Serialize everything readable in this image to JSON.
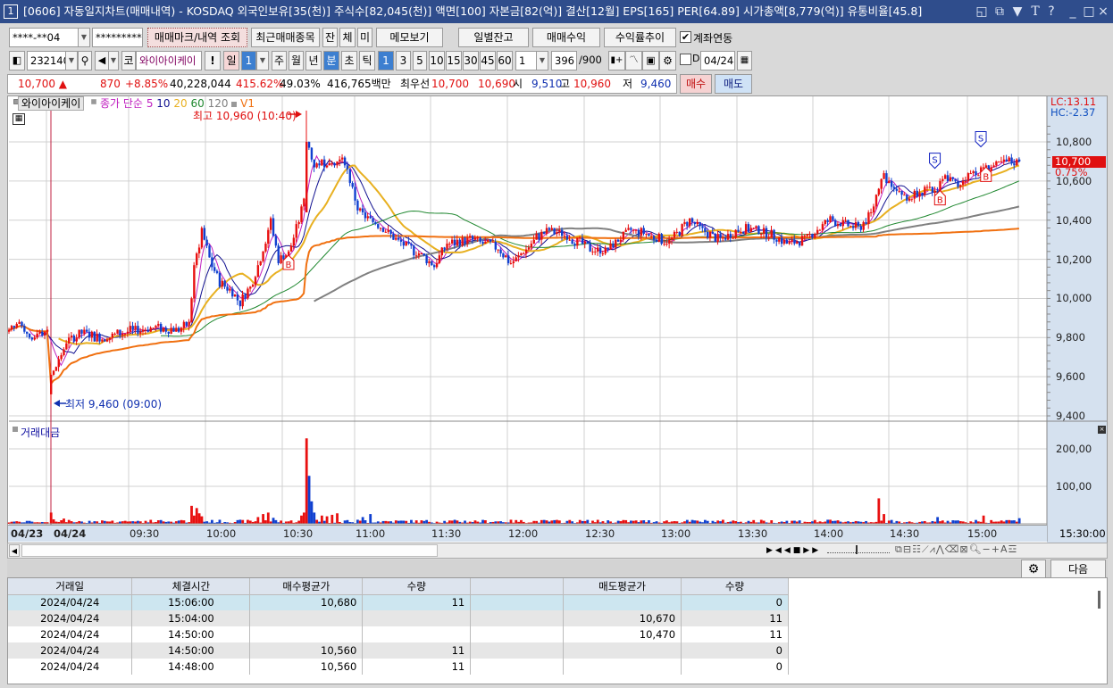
{
  "window": {
    "number": "1",
    "title": "[0606] 자동일지차트(매매내역) - KOSDAQ 외국인보유[35(천)] 주식수[82,045(천)] 액면[100] 자본금[82(억)] 결산[12월] EPS[165] PER[64.89] 시가총액[8,779(억)] 유통비율[45.8]",
    "controls": [
      "restore-layout",
      "new-window",
      "pin",
      "text",
      "help",
      "minimize",
      "maximize",
      "close"
    ],
    "control_glyphs": [
      "◱",
      "⧉",
      "▼",
      "T",
      "?",
      "_",
      "□",
      "×"
    ]
  },
  "toolbar1": {
    "account": "****-**04",
    "password": "*********",
    "query_button": "매매마크/내역 조회",
    "recent_button": "최근매매종목",
    "jan": "잔",
    "che": "체",
    "mi": "미",
    "memo_button": "메모보기",
    "daily_balance_button": "일별잔고",
    "trade_profit_button": "매매수익",
    "return_trend_button": "수익률추이",
    "account_link_label": "계좌연동",
    "account_link_checked": true
  },
  "toolbar2": {
    "code": "232140",
    "market_badge": "코",
    "stock_name": "와이아이케이",
    "alert": "!",
    "period_day": "일",
    "day_count": "1",
    "week": "주",
    "month": "월",
    "year": "년",
    "minute": "분",
    "second": "초",
    "tick": "틱",
    "intervals": [
      "1",
      "3",
      "5",
      "10",
      "15",
      "30",
      "45",
      "60"
    ],
    "selected_interval": "1",
    "multiplier": "1",
    "count": "396",
    "count_max": "/900",
    "d_label": "D",
    "date": "04/24"
  },
  "quote": {
    "price": "10,700 ▲",
    "change": "870",
    "change_pct": "+8.85%",
    "volume": "40,228,044",
    "volume_ratio": "415.62%",
    "turnover_pct": "49.03%",
    "trade_value": "416,765백만",
    "best_label": "최우선",
    "ask": "10,700",
    "bid": "10,690",
    "open_label": "시",
    "open": "9,510",
    "high_label": "고",
    "high": "10,960",
    "low_label": "저",
    "low": "9,460",
    "buy_button": "매수",
    "sell_button": "매도"
  },
  "chart_data": {
    "type": "candlestick",
    "legend": {
      "stock": "와이아이케이",
      "ma_label": "종가 단순",
      "ma_periods": [
        "5",
        "10",
        "20",
        "60",
        "120"
      ],
      "vwap": "V1"
    },
    "ma_colors": {
      "5": "#c020c0",
      "10": "#101090",
      "20": "#e8b020",
      "60": "#208830",
      "120": "#808080",
      "V1": "#f07010"
    },
    "up_color": "#e81010",
    "down_color": "#1040d0",
    "y_ticks": [
      "10,800",
      "10,600",
      "10,400",
      "10,200",
      "10,000",
      "9,800",
      "9,600",
      "9,400"
    ],
    "y_tick_values": [
      10800,
      10600,
      10400,
      10200,
      10000,
      9800,
      9600,
      9400
    ],
    "ylim": [
      9400,
      10800
    ],
    "lc": "LC:13.11",
    "hc": "HC:-2.37",
    "last_price": "10,700",
    "last_pct": "0.75%",
    "high_annotation": "최고 10,960 (10:40)",
    "low_annotation": "최저 9,460 (09:00)",
    "x_ticks": [
      "04/23",
      "04/24",
      "09:30",
      "10:00",
      "10:30",
      "11:00",
      "11:30",
      "12:00",
      "12:30",
      "13:00",
      "13:30",
      "14:00",
      "14:30",
      "15:00"
    ],
    "x_end_label": "15:30:00",
    "prev_day_closes": [
      9840,
      9860,
      9850,
      9870,
      9880,
      9860,
      9830,
      9820,
      9800,
      9790,
      9800,
      9820,
      9830,
      9810,
      9830,
      9840
    ],
    "day_open": 9510,
    "day_high": 10960,
    "day_high_time": "10:40",
    "day_low": 9460,
    "day_low_time": "09:00",
    "price_path": [
      [
        "09:00",
        9600
      ],
      [
        "09:03",
        9680
      ],
      [
        "09:06",
        9780
      ],
      [
        "09:12",
        9820
      ],
      [
        "09:20",
        9800
      ],
      [
        "09:30",
        9830
      ],
      [
        "09:40",
        9850
      ],
      [
        "09:50",
        9840
      ],
      [
        "09:54",
        9870
      ],
      [
        "09:56",
        10150
      ],
      [
        "09:59",
        10350
      ],
      [
        "10:02",
        10200
      ],
      [
        "10:06",
        10080
      ],
      [
        "10:10",
        10050
      ],
      [
        "10:14",
        9980
      ],
      [
        "10:18",
        10060
      ],
      [
        "10:22",
        10200
      ],
      [
        "10:26",
        10400
      ],
      [
        "10:29",
        10200
      ],
      [
        "10:33",
        10230
      ],
      [
        "10:37",
        10400
      ],
      [
        "10:39",
        10500
      ],
      [
        "10:40",
        10800
      ],
      [
        "10:43",
        10680
      ],
      [
        "10:48",
        10700
      ],
      [
        "10:55",
        10700
      ],
      [
        "11:00",
        10460
      ],
      [
        "11:05",
        10400
      ],
      [
        "11:10",
        10360
      ],
      [
        "11:15",
        10300
      ],
      [
        "11:20",
        10260
      ],
      [
        "11:25",
        10220
      ],
      [
        "11:30",
        10170
      ],
      [
        "11:35",
        10280
      ],
      [
        "11:45",
        10300
      ],
      [
        "11:55",
        10260
      ],
      [
        "12:00",
        10180
      ],
      [
        "12:05",
        10240
      ],
      [
        "12:10",
        10310
      ],
      [
        "12:15",
        10350
      ],
      [
        "12:22",
        10320
      ],
      [
        "12:30",
        10260
      ],
      [
        "12:37",
        10240
      ],
      [
        "12:42",
        10300
      ],
      [
        "12:47",
        10350
      ],
      [
        "12:55",
        10320
      ],
      [
        "13:02",
        10290
      ],
      [
        "13:10",
        10400
      ],
      [
        "13:16",
        10340
      ],
      [
        "13:22",
        10300
      ],
      [
        "13:30",
        10360
      ],
      [
        "13:37",
        10350
      ],
      [
        "13:43",
        10320
      ],
      [
        "13:48",
        10280
      ],
      [
        "13:55",
        10300
      ],
      [
        "14:00",
        10350
      ],
      [
        "14:05",
        10400
      ],
      [
        "14:10",
        10380
      ],
      [
        "14:16",
        10360
      ],
      [
        "14:21",
        10430
      ],
      [
        "14:25",
        10620
      ],
      [
        "14:30",
        10580
      ],
      [
        "14:35",
        10500
      ],
      [
        "14:40",
        10560
      ],
      [
        "14:46",
        10540
      ],
      [
        "14:50",
        10620
      ],
      [
        "14:55",
        10580
      ],
      [
        "15:00",
        10640
      ],
      [
        "15:05",
        10660
      ],
      [
        "15:10",
        10680
      ],
      [
        "15:15",
        10700
      ],
      [
        "15:19",
        10700
      ]
    ],
    "volume": {
      "label": "거래대금",
      "y_ticks": [
        "200,00",
        "100,00"
      ],
      "y_tick_values": [
        200,
        100
      ],
      "spikes": [
        [
          "09:00",
          30
        ],
        [
          "09:01",
          12
        ],
        [
          "09:05",
          14
        ],
        [
          "09:55",
          48
        ],
        [
          "09:56",
          22
        ],
        [
          "09:57",
          42
        ],
        [
          "09:58",
          28
        ],
        [
          "09:59",
          20
        ],
        [
          "10:21",
          18
        ],
        [
          "10:23",
          26
        ],
        [
          "10:25",
          30
        ],
        [
          "10:27",
          16
        ],
        [
          "10:38",
          22
        ],
        [
          "10:39",
          30
        ],
        [
          "10:40",
          228
        ],
        [
          "10:41",
          128
        ],
        [
          "10:42",
          60
        ],
        [
          "10:43",
          30
        ],
        [
          "10:46",
          22
        ],
        [
          "10:48",
          20
        ],
        [
          "10:50",
          24
        ],
        [
          "10:52",
          28
        ],
        [
          "11:02",
          18
        ],
        [
          "11:05",
          26
        ],
        [
          "14:24",
          68
        ],
        [
          "14:26",
          26
        ],
        [
          "14:47",
          18
        ],
        [
          "15:05",
          22
        ],
        [
          "15:19",
          15
        ]
      ]
    },
    "trade_markers": [
      {
        "type": "B",
        "time": "10:33",
        "price": 10230
      },
      {
        "type": "S",
        "time": "14:46",
        "price": 10560
      },
      {
        "type": "B",
        "time": "14:48",
        "price": 10560
      },
      {
        "type": "S",
        "time": "15:04",
        "price": 10670
      },
      {
        "type": "B",
        "time": "15:06",
        "price": 10680
      }
    ]
  },
  "bottom": {
    "next_button": "다음"
  },
  "trades_table": {
    "headers": [
      "거래일",
      "체결시간",
      "매수평균가",
      "수량",
      "",
      "매도평균가",
      "수량"
    ],
    "rows": [
      [
        "2024/04/24",
        "15:06:00",
        "10,680",
        "11",
        "",
        "",
        "0"
      ],
      [
        "2024/04/24",
        "15:04:00",
        "",
        "",
        "",
        "10,670",
        "11"
      ],
      [
        "2024/04/24",
        "14:50:00",
        "",
        "",
        "",
        "10,470",
        "11"
      ],
      [
        "2024/04/24",
        "14:50:00",
        "10,560",
        "11",
        "",
        "",
        "0"
      ],
      [
        "2024/04/24",
        "14:48:00",
        "10,560",
        "11",
        "",
        "",
        "0"
      ]
    ]
  }
}
